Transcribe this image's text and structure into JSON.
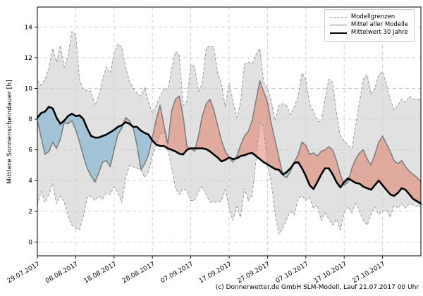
{
  "chart_data": {
    "type": "line",
    "title": "",
    "ylabel": "Mittlere Sonnenscheindauer [h]",
    "xlabel": "",
    "caption": "(c) Donnerwetter.de GmbH SLM-Modell, Lauf 21.07.2017 00 Uhr",
    "grid": true,
    "xlim": [
      0,
      100
    ],
    "ylim": [
      -0.9,
      15.3
    ],
    "y_ticks": [
      0,
      2,
      4,
      6,
      8,
      10,
      12,
      14
    ],
    "x_tick_positions": [
      0,
      10,
      20,
      30,
      40,
      50,
      60,
      70,
      80,
      90
    ],
    "x_tick_labels": [
      "29.07.2017",
      "08.08.2017",
      "18.08.2017",
      "28.08.2017",
      "07.09.2017",
      "17.09.2017",
      "27.09.2017",
      "07.10.2017",
      "17.10.2017",
      "27.10.2017"
    ],
    "x_unit": "days since 29.07.2017",
    "legend": {
      "position": "top-right",
      "entries": [
        {
          "label": "Modellgrenzen",
          "style": "dashed-gray-line"
        },
        {
          "label": "Mittel aller Modelle",
          "style": "solid-gray-line"
        },
        {
          "label": "Mittelwert 30 Jahre",
          "style": "thick-black-line"
        }
      ]
    },
    "colors": {
      "envelope_fill": "#cfcfcf",
      "above_mean_fill": "#e06a4e",
      "below_mean_fill": "#4e9cc8",
      "bound_line": "#999999",
      "model_mean_line": "#7f7f7f",
      "mean30_line": "#000000",
      "grid_line": "#cccccc",
      "frame": "#000000",
      "background": "#ffffff"
    },
    "series": [
      {
        "name": "Modellgrenzen (obere Grenze)",
        "role": "upper_bound",
        "values": [
          10.5,
          10.2,
          10.6,
          11.3,
          12.6,
          11.7,
          12.8,
          11.4,
          12.1,
          13.7,
          13.5,
          10.6,
          9.9,
          9.9,
          9.8,
          8.9,
          9.5,
          10.6,
          11.4,
          11.0,
          12.3,
          12.9,
          12.7,
          11.4,
          10.5,
          10.0,
          9.7,
          9.5,
          10.1,
          9.1,
          8.4,
          8.9,
          9.5,
          10.0,
          9.9,
          11.2,
          12.4,
          12.2,
          8.9,
          9.2,
          11.6,
          11.4,
          9.8,
          10.3,
          12.6,
          12.8,
          12.7,
          11.0,
          10.3,
          8.8,
          10.4,
          9.2,
          8.1,
          9.1,
          11.6,
          11.7,
          11.6,
          12.2,
          12.6,
          10.4,
          10.0,
          9.2,
          7.9,
          8.9,
          9.0,
          8.9,
          8.3,
          8.8,
          9.5,
          11.0,
          10.6,
          9.0,
          8.5,
          7.9,
          7.8,
          9.3,
          10.6,
          10.4,
          8.4,
          6.9,
          6.6,
          6.3,
          6.1,
          7.6,
          9.1,
          10.6,
          10.9,
          9.6,
          10.0,
          10.9,
          11.1,
          10.3,
          9.3,
          8.6,
          8.9,
          9.3,
          9.1,
          9.5,
          9.3,
          9.3,
          9.3
        ]
      },
      {
        "name": "Modellgrenzen (untere Grenze)",
        "role": "lower_bound",
        "values": [
          2.4,
          3.3,
          2.6,
          3.1,
          3.8,
          2.5,
          3.0,
          2.6,
          1.7,
          1.1,
          0.9,
          0.8,
          1.7,
          2.9,
          3.0,
          2.7,
          3.0,
          2.8,
          3.2,
          3.1,
          3.6,
          3.2,
          2.6,
          4.1,
          5.0,
          4.9,
          4.8,
          4.7,
          4.2,
          4.6,
          5.6,
          6.3,
          7.0,
          7.2,
          6.0,
          4.9,
          3.5,
          3.1,
          3.5,
          3.3,
          2.7,
          2.7,
          3.3,
          3.6,
          3.1,
          2.6,
          2.6,
          2.6,
          2.7,
          3.4,
          2.2,
          1.4,
          2.3,
          1.6,
          3.5,
          2.7,
          3.0,
          5.3,
          7.8,
          7.4,
          5.0,
          3.9,
          1.8,
          0.5,
          0.9,
          1.5,
          2.0,
          1.8,
          2.8,
          3.0,
          2.7,
          2.9,
          2.2,
          2.4,
          1.4,
          1.9,
          1.5,
          1.1,
          1.5,
          0.8,
          1.9,
          2.3,
          1.9,
          2.5,
          2.0,
          1.4,
          1.1,
          1.8,
          2.3,
          1.8,
          2.0,
          2.1,
          1.6,
          2.4,
          2.2,
          2.5,
          2.2,
          2.5,
          2.4,
          2.3,
          2.3
        ]
      },
      {
        "name": "Mittel aller Modelle",
        "role": "model_mean",
        "values": [
          7.9,
          6.8,
          5.7,
          5.9,
          6.5,
          6.1,
          6.7,
          7.8,
          7.7,
          7.9,
          7.3,
          6.5,
          5.6,
          4.8,
          4.3,
          3.9,
          4.5,
          5.2,
          5.3,
          4.9,
          6.0,
          7.0,
          7.4,
          8.1,
          7.9,
          7.4,
          6.3,
          4.7,
          5.1,
          5.7,
          6.8,
          8.0,
          8.9,
          7.6,
          6.4,
          8.5,
          9.3,
          9.5,
          8.2,
          6.2,
          6.1,
          5.9,
          6.9,
          8.2,
          9.0,
          9.3,
          8.6,
          7.6,
          6.6,
          5.9,
          5.5,
          5.2,
          5.6,
          6.3,
          6.9,
          7.2,
          7.9,
          9.2,
          10.5,
          9.8,
          9.1,
          7.7,
          6.6,
          5.5,
          4.35,
          4.2,
          4.6,
          5.2,
          5.7,
          6.5,
          6.3,
          5.7,
          5.8,
          5.6,
          5.9,
          6.0,
          6.2,
          6.0,
          5.3,
          4.4,
          3.7,
          3.9,
          4.8,
          5.4,
          5.8,
          6.0,
          5.4,
          5.0,
          5.7,
          6.5,
          6.9,
          6.4,
          5.9,
          5.3,
          5.1,
          5.3,
          4.9,
          4.6,
          4.4,
          4.2,
          3.9
        ]
      },
      {
        "name": "Mittelwert 30 Jahre",
        "role": "mean_30y",
        "values": [
          8.1,
          8.4,
          8.5,
          8.8,
          8.7,
          8.1,
          7.7,
          7.9,
          8.2,
          8.35,
          8.2,
          8.25,
          8.0,
          7.4,
          6.9,
          6.8,
          6.8,
          6.9,
          7.0,
          7.15,
          7.3,
          7.5,
          7.6,
          7.8,
          7.7,
          7.5,
          7.5,
          7.25,
          7.1,
          7.0,
          6.6,
          6.35,
          6.25,
          6.25,
          6.1,
          6.0,
          5.9,
          5.75,
          5.7,
          6.0,
          6.1,
          6.1,
          6.1,
          6.1,
          6.05,
          5.9,
          5.7,
          5.5,
          5.25,
          5.35,
          5.5,
          5.4,
          5.45,
          5.6,
          5.65,
          5.75,
          5.8,
          5.6,
          5.4,
          5.2,
          5.05,
          4.9,
          4.75,
          4.7,
          4.4,
          4.55,
          4.8,
          5.15,
          5.2,
          4.8,
          4.3,
          3.7,
          3.45,
          3.9,
          4.4,
          4.8,
          4.8,
          4.4,
          3.9,
          3.55,
          3.9,
          4.15,
          4.0,
          3.85,
          3.8,
          3.6,
          3.5,
          3.4,
          3.7,
          4.0,
          3.7,
          3.4,
          3.1,
          3.0,
          3.2,
          3.5,
          3.4,
          3.1,
          2.8,
          2.65,
          2.5
        ]
      }
    ]
  }
}
